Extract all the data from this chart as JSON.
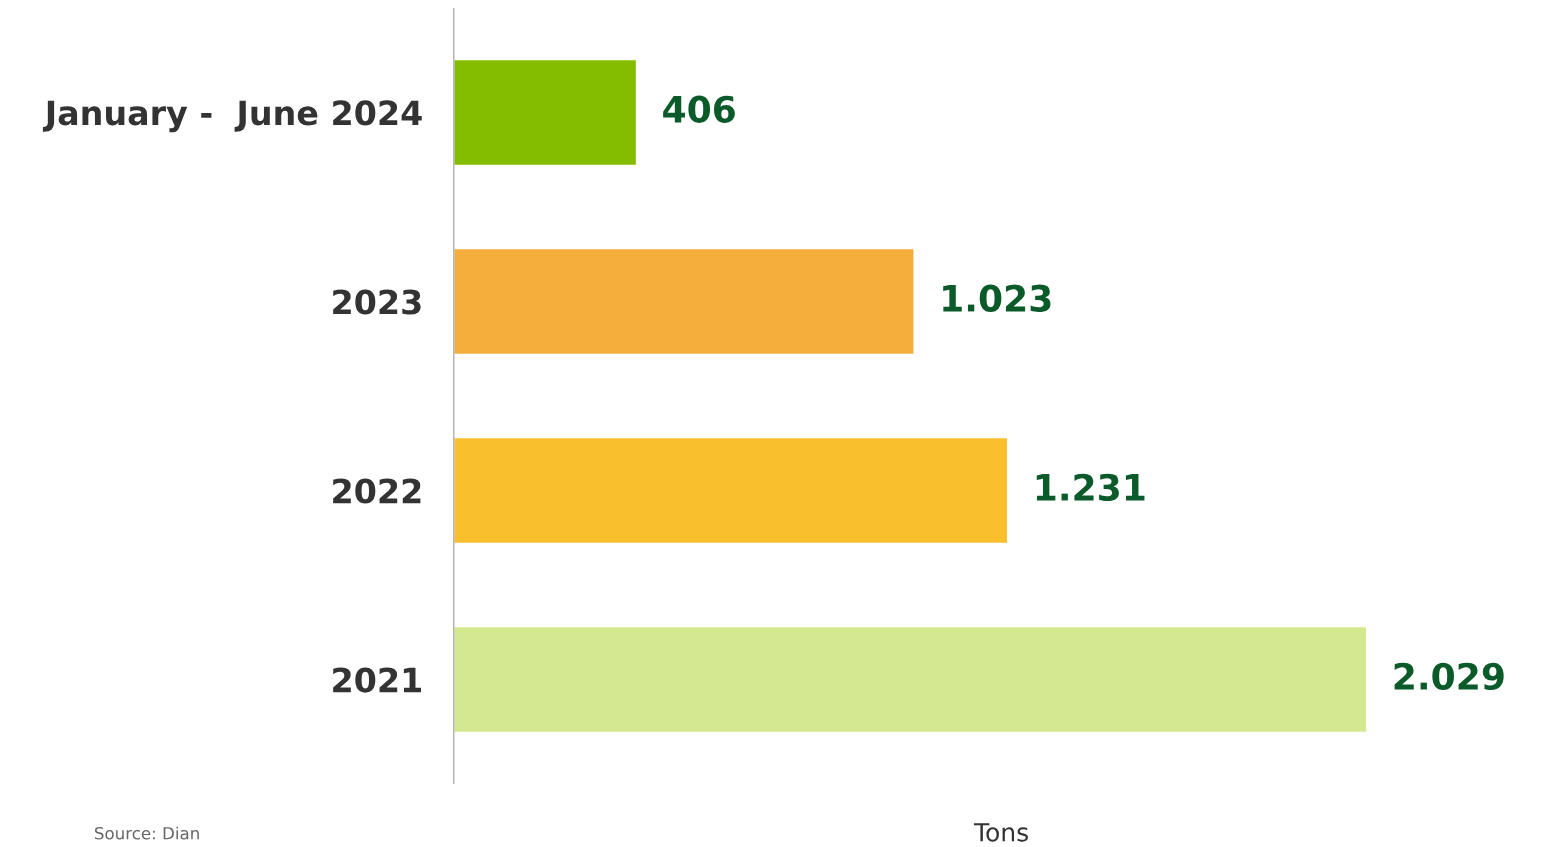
{
  "chart_data": {
    "type": "bar",
    "orientation": "horizontal",
    "categories": [
      "January -  June 2024",
      "2023",
      "2022",
      "2021"
    ],
    "values": [
      406,
      1023,
      1231,
      2029
    ],
    "colors": [
      "#84bd00",
      "#f5ad3c",
      "#f9bf2c",
      "#d3e88f"
    ],
    "value_labels": [
      "406",
      "1.023",
      "1.231",
      "2.029"
    ],
    "xlabel": "Tons",
    "annotations": [
      "Source: Dian"
    ],
    "grid": false,
    "legend": false,
    "tick_labels": "y"
  }
}
